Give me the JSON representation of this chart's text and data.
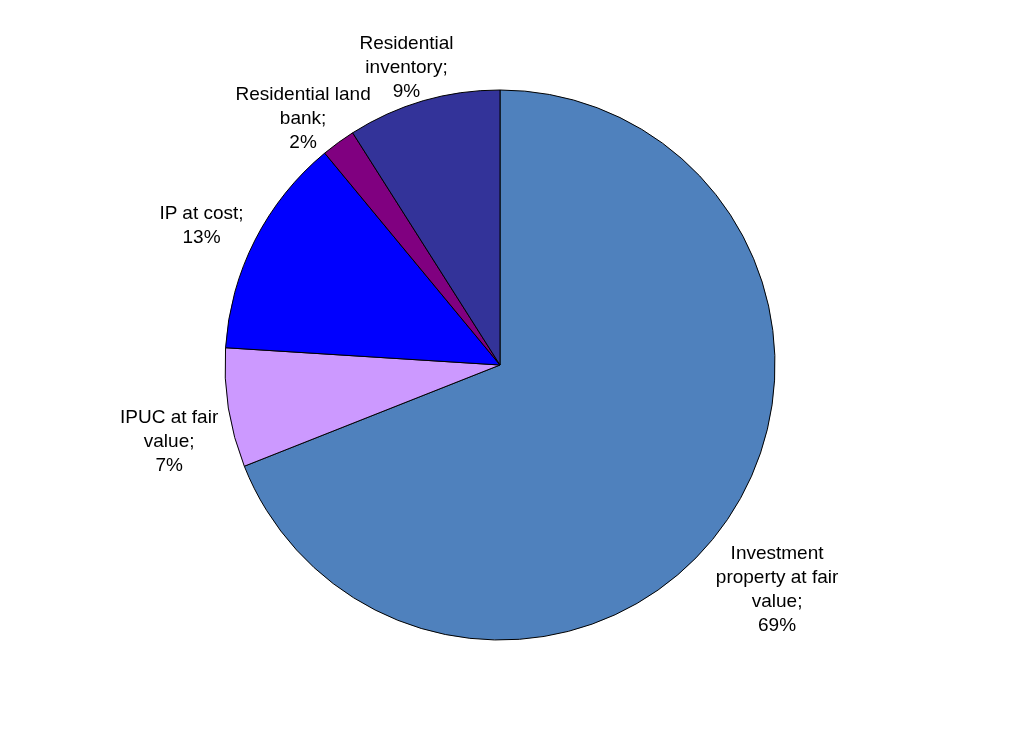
{
  "chart_data": {
    "type": "pie",
    "categories": [
      "Investment property at fair value",
      "IPUC at fair value",
      "IP at cost",
      "Residential land bank",
      "Residential inventory"
    ],
    "values": [
      69,
      7,
      13,
      2,
      9
    ],
    "value_labels": [
      "; 69%",
      "; 7%",
      "; 13%",
      "; 2%",
      "; 9%"
    ],
    "colors": [
      "#4f81bd",
      "#cc99ff",
      "#0000ff",
      "#800080",
      "#333399"
    ]
  }
}
